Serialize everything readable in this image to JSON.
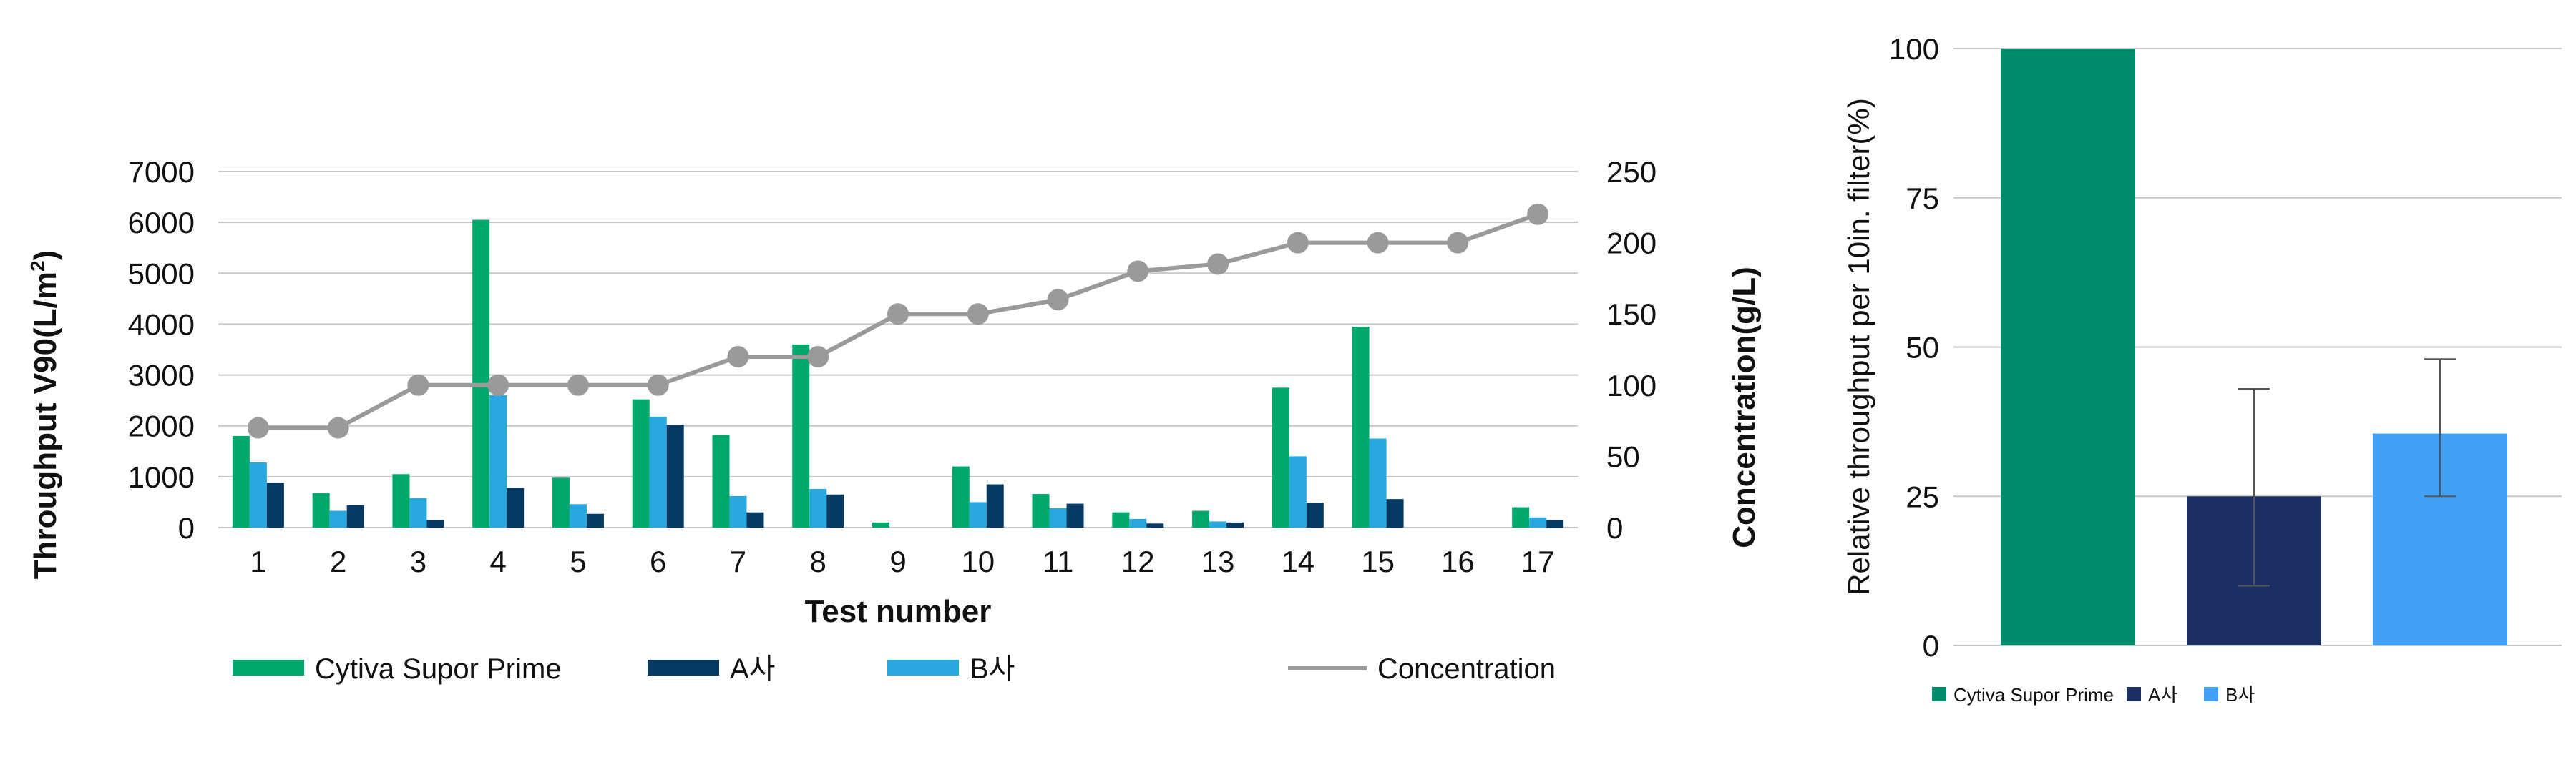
{
  "colors": {
    "cytiva": "#00a86b",
    "a": "#063a63",
    "b": "#29a8df",
    "concentration": "#9a9a9a",
    "right_cytiva": "#008c6a",
    "right_a": "#1c2f63",
    "right_b": "#42a0f5"
  },
  "chart_data": [
    {
      "type": "bar",
      "xlabel": "Test number",
      "ylabel_prefix": "Throughput V90(L/m",
      "ylabel_sup": "2",
      "ylabel_suffix": ")",
      "y2label": "Concentration(g/L)",
      "ylim": [
        0,
        7000
      ],
      "y2lim": [
        0,
        250
      ],
      "yticks": [
        "0",
        "1000",
        "2000",
        "3000",
        "4000",
        "5000",
        "6000",
        "7000"
      ],
      "y2ticks": [
        "0",
        "50",
        "100",
        "150",
        "200",
        "250"
      ],
      "grid": true,
      "legend_position": "bottom",
      "categories": [
        "1",
        "2",
        "3",
        "4",
        "5",
        "6",
        "7",
        "8",
        "9",
        "10",
        "11",
        "12",
        "13",
        "14",
        "15",
        "16",
        "17"
      ],
      "series": [
        {
          "name": "Cytiva Supor Prime",
          "kind": "bar",
          "values": [
            1800,
            680,
            1050,
            6050,
            980,
            2520,
            1820,
            3600,
            100,
            1200,
            660,
            300,
            330,
            2750,
            3950,
            0,
            400
          ]
        },
        {
          "name": "A사",
          "kind": "bar",
          "values": [
            880,
            440,
            150,
            780,
            270,
            2020,
            300,
            650,
            0,
            850,
            470,
            80,
            100,
            490,
            560,
            0,
            150
          ]
        },
        {
          "name": "B사",
          "kind": "bar",
          "values": [
            1280,
            330,
            580,
            2600,
            460,
            2180,
            620,
            760,
            0,
            500,
            380,
            170,
            120,
            1400,
            1750,
            0,
            200
          ]
        },
        {
          "name": "Concentration",
          "kind": "line",
          "axis": "right",
          "values": [
            70,
            70,
            100,
            100,
            100,
            100,
            120,
            120,
            150,
            150,
            160,
            180,
            185,
            200,
            200,
            200,
            220
          ]
        }
      ]
    },
    {
      "type": "bar",
      "ylabel": "Relative throughput per 10in. filter(%)",
      "ylim": [
        0,
        100
      ],
      "yticks": [
        "0",
        "25",
        "50",
        "75",
        "100"
      ],
      "grid": true,
      "legend_position": "bottom",
      "categories": [
        "Cytiva Supor Prime",
        "A사",
        "B사"
      ],
      "values": [
        100,
        25,
        35.5
      ],
      "error_low": [
        null,
        10,
        25
      ],
      "error_high": [
        null,
        43,
        48
      ]
    }
  ]
}
